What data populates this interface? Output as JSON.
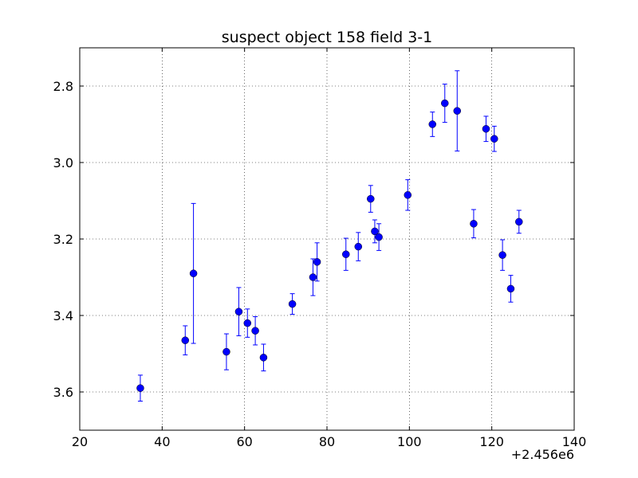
{
  "chart_data": {
    "type": "scatter",
    "title": "suspect object 158 field 3-1",
    "xlabel": "",
    "ylabel": "",
    "x_offset_label": "+2.456e6",
    "xlim": [
      20,
      140
    ],
    "ylim": [
      3.7,
      2.7
    ],
    "y_inverted": true,
    "grid": true,
    "marker_color": "#0000ff",
    "x_ticks": [
      20,
      40,
      60,
      80,
      100,
      120,
      140
    ],
    "x_tick_labels": [
      "20",
      "40",
      "60",
      "80",
      "100",
      "120",
      "140"
    ],
    "y_ticks": [
      2.8,
      3.0,
      3.2,
      3.4,
      3.6
    ],
    "y_tick_labels": [
      "2.8",
      "3.0",
      "3.2",
      "3.4",
      "3.6"
    ],
    "series": [
      {
        "points": [
          {
            "x": 34.7,
            "y": 3.59,
            "err": 0.034
          },
          {
            "x": 45.6,
            "y": 3.465,
            "err": 0.038
          },
          {
            "x": 47.6,
            "y": 3.29,
            "err": 0.183
          },
          {
            "x": 55.6,
            "y": 3.495,
            "err": 0.047
          },
          {
            "x": 58.6,
            "y": 3.39,
            "err": 0.063
          },
          {
            "x": 60.7,
            "y": 3.42,
            "err": 0.037
          },
          {
            "x": 62.6,
            "y": 3.44,
            "err": 0.037
          },
          {
            "x": 64.6,
            "y": 3.51,
            "err": 0.035
          },
          {
            "x": 71.6,
            "y": 3.37,
            "err": 0.027
          },
          {
            "x": 76.6,
            "y": 3.3,
            "err": 0.048
          },
          {
            "x": 77.6,
            "y": 3.26,
            "err": 0.05
          },
          {
            "x": 84.6,
            "y": 3.24,
            "err": 0.042
          },
          {
            "x": 87.6,
            "y": 3.22,
            "err": 0.037
          },
          {
            "x": 90.6,
            "y": 3.095,
            "err": 0.035
          },
          {
            "x": 91.6,
            "y": 3.18,
            "err": 0.03
          },
          {
            "x": 92.6,
            "y": 3.195,
            "err": 0.035
          },
          {
            "x": 99.6,
            "y": 3.085,
            "err": 0.04
          },
          {
            "x": 105.6,
            "y": 2.9,
            "err": 0.032
          },
          {
            "x": 108.6,
            "y": 2.845,
            "err": 0.05
          },
          {
            "x": 111.6,
            "y": 2.865,
            "err": 0.105
          },
          {
            "x": 115.6,
            "y": 3.16,
            "err": 0.037
          },
          {
            "x": 118.6,
            "y": 2.912,
            "err": 0.033
          },
          {
            "x": 120.6,
            "y": 2.938,
            "err": 0.033
          },
          {
            "x": 122.6,
            "y": 3.242,
            "err": 0.04
          },
          {
            "x": 124.6,
            "y": 3.33,
            "err": 0.035
          },
          {
            "x": 126.6,
            "y": 3.155,
            "err": 0.03
          }
        ]
      }
    ]
  }
}
